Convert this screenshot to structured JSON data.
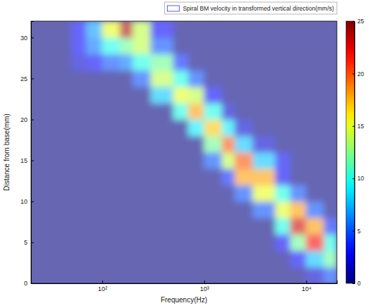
{
  "chart_data": {
    "type": "heatmap",
    "x_label": "Frequency(Hz)",
    "y_label": "Distance from base(mm)",
    "log": "x",
    "xlim": [
      20,
      20000
    ],
    "xticks": [
      {
        "value": 100,
        "label": "10²"
      },
      {
        "value": 1000,
        "label": "10³"
      },
      {
        "value": 10000,
        "label": "10⁴"
      }
    ],
    "ylim": [
      0,
      32
    ],
    "yticks": [
      0,
      5,
      10,
      15,
      20,
      25,
      30
    ],
    "legend": "upper right",
    "x_edges": [
      20,
      30,
      50,
      70,
      100,
      150,
      200,
      300,
      500,
      700,
      1000,
      1500,
      2000,
      3000,
      5000,
      7000,
      10000,
      15000,
      20000
    ],
    "y_edges": [
      0,
      2,
      4,
      6,
      8,
      10,
      12,
      14,
      16,
      18,
      20,
      22,
      24,
      26,
      28,
      30,
      32
    ],
    "colorbar": {
      "range": [
        0,
        25
      ],
      "ticks": [
        0,
        5,
        10,
        15,
        20,
        25
      ]
    },
    "series": [
      {
        "name": "Spiral BM velocity in transformed vertical direction(mm/s)",
        "color": "#5a5aff",
        "values": [
          [
            0,
            0,
            0,
            0,
            0,
            0,
            0,
            0,
            0,
            0,
            0,
            0,
            0,
            0,
            0,
            0,
            2,
            5
          ],
          [
            0,
            0,
            0,
            0,
            0,
            0,
            0,
            0,
            0,
            0,
            0,
            0,
            0,
            0,
            0,
            3,
            8,
            12
          ],
          [
            0,
            0,
            0,
            0,
            0,
            0,
            0,
            0,
            0,
            0,
            0,
            0,
            0,
            0,
            3,
            12,
            22,
            10
          ],
          [
            0,
            0,
            0,
            0,
            0,
            0,
            0,
            0,
            0,
            0,
            0,
            0,
            0,
            0,
            10,
            23,
            18,
            4
          ],
          [
            0,
            0,
            0,
            0,
            0,
            0,
            0,
            0,
            0,
            0,
            0,
            0,
            0,
            5,
            15,
            18,
            5,
            0
          ],
          [
            0,
            0,
            0,
            0,
            0,
            0,
            0,
            0,
            0,
            0,
            0,
            0,
            5,
            15,
            10,
            5,
            0,
            0
          ],
          [
            0,
            0,
            0,
            0,
            0,
            0,
            0,
            0,
            0,
            0,
            0,
            4,
            18,
            18,
            3,
            0,
            0,
            0
          ],
          [
            0,
            0,
            0,
            0,
            0,
            0,
            0,
            0,
            0,
            0,
            5,
            14,
            20,
            8,
            3,
            0,
            0,
            0
          ],
          [
            0,
            0,
            0,
            0,
            0,
            0,
            0,
            0,
            0,
            0,
            12,
            20,
            8,
            2,
            0,
            0,
            0,
            0
          ],
          [
            0,
            0,
            0,
            0,
            0,
            0,
            0,
            0,
            0,
            9,
            17,
            9,
            2,
            0,
            0,
            0,
            0,
            0
          ],
          [
            0,
            0,
            0,
            0,
            0,
            0,
            0,
            0,
            10,
            18,
            10,
            2,
            0,
            0,
            0,
            0,
            0,
            0
          ],
          [
            0,
            0,
            0,
            0,
            0,
            0,
            0,
            8,
            15,
            14,
            3,
            0,
            0,
            0,
            0,
            0,
            0,
            0
          ],
          [
            0,
            0,
            0,
            0,
            0,
            0,
            5,
            14,
            10,
            5,
            0,
            0,
            0,
            0,
            0,
            0,
            0,
            0
          ],
          [
            0,
            0,
            2,
            3,
            5,
            6,
            10,
            12,
            4,
            0,
            0,
            0,
            0,
            0,
            0,
            0,
            0,
            0
          ],
          [
            0,
            0,
            3,
            6,
            10,
            12,
            14,
            5,
            0,
            0,
            0,
            0,
            0,
            0,
            0,
            0,
            0,
            0
          ],
          [
            0,
            0,
            3,
            7,
            15,
            24,
            14,
            3,
            0,
            0,
            0,
            0,
            0,
            0,
            0,
            0,
            0,
            0
          ]
        ]
      }
    ]
  }
}
